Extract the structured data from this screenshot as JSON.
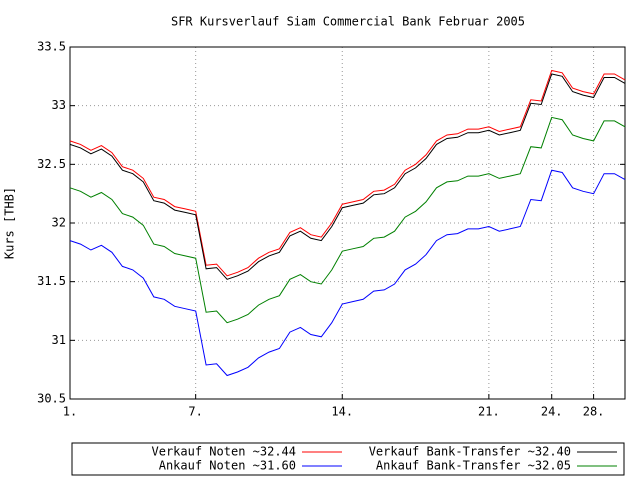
{
  "chart_data": {
    "type": "line",
    "title": "SFR Kursverlauf Siam Commercial Bank Februar 2005",
    "y_label": "Kurs [THB]",
    "categories": [
      "1.",
      null,
      null,
      null,
      null,
      null,
      null,
      null,
      null,
      null,
      null,
      null,
      "7.",
      null,
      null,
      null,
      null,
      null,
      null,
      null,
      null,
      null,
      null,
      null,
      null,
      null,
      "14.",
      null,
      null,
      null,
      null,
      null,
      null,
      null,
      null,
      null,
      null,
      null,
      null,
      null,
      "21.",
      null,
      null,
      null,
      null,
      null,
      "24.",
      null,
      null,
      null,
      "28.",
      null,
      null,
      null
    ],
    "series": [
      {
        "name": "Verkauf Noten ~32.44",
        "color": "#ff0000",
        "values": [
          32.7,
          32.67,
          32.62,
          32.66,
          32.6,
          32.48,
          32.45,
          32.38,
          32.22,
          32.2,
          32.14,
          32.12,
          32.1,
          31.64,
          31.65,
          31.55,
          31.58,
          31.62,
          31.7,
          31.75,
          31.78,
          31.92,
          31.96,
          31.9,
          31.88,
          32.0,
          32.16,
          32.18,
          32.2,
          32.27,
          32.28,
          32.33,
          32.45,
          32.5,
          32.58,
          32.7,
          32.75,
          32.76,
          32.8,
          32.8,
          32.82,
          32.78,
          32.8,
          32.82,
          33.05,
          33.04,
          33.3,
          33.28,
          33.15,
          33.12,
          33.1,
          33.27,
          33.27,
          33.22
        ]
      },
      {
        "name": "Verkauf Bank-Transfer ~32.40",
        "color": "#000000",
        "values": [
          32.67,
          32.64,
          32.59,
          32.63,
          32.57,
          32.45,
          32.42,
          32.35,
          32.19,
          32.17,
          32.11,
          32.09,
          32.07,
          31.61,
          31.62,
          31.52,
          31.55,
          31.59,
          31.67,
          31.72,
          31.75,
          31.89,
          31.93,
          31.87,
          31.85,
          31.97,
          32.13,
          32.15,
          32.17,
          32.24,
          32.25,
          32.3,
          32.42,
          32.47,
          32.55,
          32.67,
          32.72,
          32.73,
          32.77,
          32.77,
          32.79,
          32.75,
          32.77,
          32.79,
          33.02,
          33.01,
          33.27,
          33.25,
          33.12,
          33.09,
          33.07,
          33.24,
          33.24,
          33.19
        ]
      },
      {
        "name": "Ankauf Noten ~31.60",
        "color": "#0000ff",
        "values": [
          31.85,
          31.82,
          31.77,
          31.81,
          31.75,
          31.63,
          31.6,
          31.53,
          31.37,
          31.35,
          31.29,
          31.27,
          31.25,
          30.79,
          30.8,
          30.7,
          30.73,
          30.77,
          30.85,
          30.9,
          30.93,
          31.07,
          31.11,
          31.05,
          31.03,
          31.15,
          31.31,
          31.33,
          31.35,
          31.42,
          31.43,
          31.48,
          31.6,
          31.65,
          31.73,
          31.85,
          31.9,
          31.91,
          31.95,
          31.95,
          31.97,
          31.93,
          31.95,
          31.97,
          32.2,
          32.19,
          32.45,
          32.43,
          32.3,
          32.27,
          32.25,
          32.42,
          32.42,
          32.37
        ]
      },
      {
        "name": "Ankauf Bank-Transfer ~32.05",
        "color": "#008000",
        "values": [
          32.3,
          32.27,
          32.22,
          32.26,
          32.2,
          32.08,
          32.05,
          31.98,
          31.82,
          31.8,
          31.74,
          31.72,
          31.7,
          31.24,
          31.25,
          31.15,
          31.18,
          31.22,
          31.3,
          31.35,
          31.38,
          31.52,
          31.56,
          31.5,
          31.48,
          31.6,
          31.76,
          31.78,
          31.8,
          31.87,
          31.88,
          31.93,
          32.05,
          32.1,
          32.18,
          32.3,
          32.35,
          32.36,
          32.4,
          32.4,
          32.42,
          32.38,
          32.4,
          32.42,
          32.65,
          32.64,
          32.9,
          32.88,
          32.75,
          32.72,
          32.7,
          32.87,
          32.87,
          32.82
        ]
      }
    ],
    "ylim": [
      30.5,
      33.5
    ],
    "yticks": [
      30.5,
      31,
      31.5,
      32,
      32.5,
      33,
      33.5
    ],
    "grid": true
  }
}
